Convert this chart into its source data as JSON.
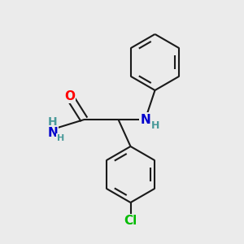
{
  "background_color": "#ebebeb",
  "bond_color": "#1a1a1a",
  "atom_colors": {
    "O": "#ff0000",
    "N": "#0000cc",
    "Cl": "#00bb00",
    "H": "#4a9a9a"
  },
  "bond_width": 1.5,
  "ring_r": 0.115,
  "fig_size": [
    3.0,
    3.0
  ],
  "dpi": 100
}
